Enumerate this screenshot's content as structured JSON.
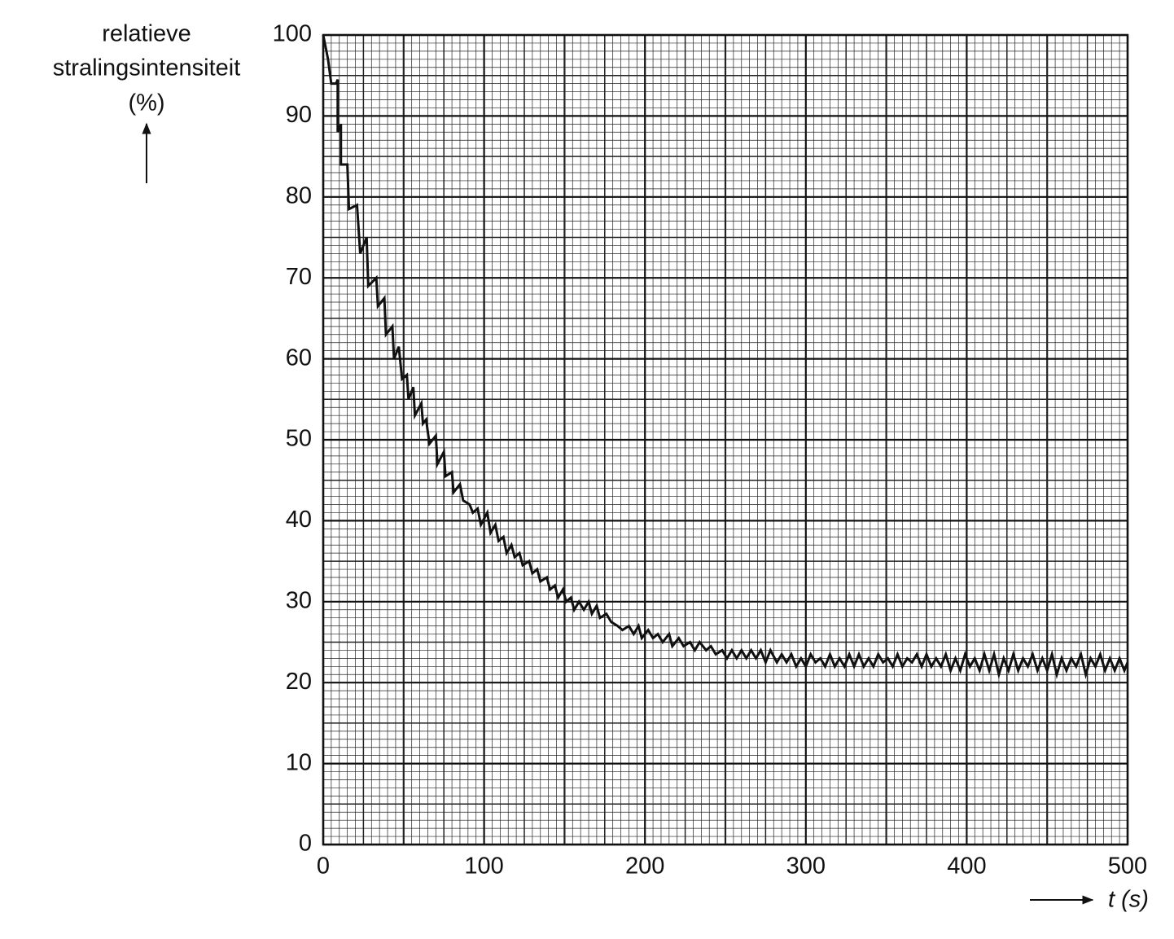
{
  "chart_data": {
    "type": "line",
    "ylabel": [
      "relatieve",
      "stralingsintensiteit",
      "(%)"
    ],
    "xlabel": "t (s)",
    "color": "#111111",
    "grid": true,
    "xlim": [
      0,
      500
    ],
    "xticks": [
      0,
      100,
      200,
      300,
      400,
      500
    ],
    "ylim": [
      0,
      100
    ],
    "yticks": [
      0,
      10,
      20,
      30,
      40,
      50,
      60,
      70,
      80,
      90,
      100
    ],
    "x": [
      0,
      3,
      5,
      8,
      9,
      9,
      11,
      11,
      15,
      16,
      21,
      23,
      27,
      28,
      33,
      34,
      38,
      39,
      43,
      44,
      47,
      49,
      52,
      53,
      56,
      57,
      61,
      62,
      64,
      66,
      70,
      71,
      75,
      76,
      80,
      81,
      85,
      87,
      91,
      93,
      96,
      98,
      102,
      104,
      107,
      109,
      112,
      114,
      117,
      119,
      122,
      124,
      128,
      130,
      133,
      135,
      139,
      141,
      144,
      146,
      149,
      151,
      154,
      156,
      159,
      162,
      165,
      167,
      170,
      172,
      176,
      179,
      183,
      186,
      190,
      193,
      196,
      198,
      202,
      205,
      208,
      211,
      215,
      217,
      221,
      224,
      228,
      231,
      234,
      238,
      241,
      244,
      248,
      251,
      254,
      257,
      260,
      263,
      266,
      269,
      272,
      275,
      278,
      282,
      285,
      288,
      291,
      294,
      297,
      300,
      303,
      306,
      309,
      312,
      315,
      318,
      321,
      324,
      327,
      330,
      333,
      336,
      339,
      342,
      345,
      348,
      351,
      354,
      357,
      360,
      363,
      366,
      369,
      372,
      375,
      378,
      381,
      384,
      387,
      390,
      393,
      396,
      399,
      402,
      405,
      408,
      411,
      414,
      417,
      420,
      423,
      426,
      429,
      432,
      435,
      438,
      441,
      444,
      447,
      450,
      453,
      456,
      459,
      462,
      465,
      468,
      471,
      474,
      477,
      480,
      483,
      486,
      489,
      492,
      495,
      498,
      500
    ],
    "values": [
      100,
      97,
      94,
      94,
      94.5,
      88,
      89,
      84,
      84,
      78.5,
      79,
      73,
      75,
      69,
      70,
      66.5,
      67.5,
      63,
      64,
      60,
      61.5,
      57.5,
      58,
      55,
      56.5,
      53,
      54.5,
      52,
      52.5,
      49.5,
      50.5,
      47,
      48.5,
      45.5,
      46,
      43.5,
      44.5,
      42.5,
      42,
      41,
      41.5,
      39.5,
      41,
      38.5,
      39.5,
      37.5,
      38,
      36,
      37,
      35.5,
      36,
      34.5,
      35,
      33.5,
      34,
      32.5,
      33,
      31.5,
      32,
      30.5,
      31.5,
      30,
      30.5,
      29,
      30,
      29,
      30,
      28.5,
      29.5,
      28,
      28.5,
      27.5,
      27,
      26.5,
      27,
      26,
      27,
      25.5,
      26.5,
      25.5,
      26,
      25,
      26,
      24.5,
      25.5,
      24.5,
      25,
      24,
      25,
      24,
      24.5,
      23.5,
      24,
      23,
      24,
      23,
      24,
      23,
      24,
      23,
      24,
      22.5,
      24,
      22.5,
      23.5,
      22.5,
      23.5,
      22,
      23,
      22,
      23.5,
      22.5,
      23,
      22,
      23.5,
      22,
      23,
      22,
      23.5,
      22,
      23.5,
      22,
      23,
      22,
      23.5,
      22.5,
      23,
      22,
      23.5,
      22,
      23,
      22.5,
      23.5,
      22,
      23.5,
      22,
      23,
      22,
      23.5,
      21.5,
      23,
      21.5,
      23.5,
      22,
      23,
      21.5,
      23.5,
      21.5,
      23.5,
      21,
      23,
      21.5,
      23.5,
      21.5,
      23,
      22,
      23.5,
      21.5,
      23,
      21.5,
      23.5,
      21,
      23,
      21.5,
      23,
      22,
      23.5,
      21,
      23,
      22,
      23.5,
      21.5,
      23,
      21.5,
      23,
      21.5,
      22.5
    ]
  }
}
